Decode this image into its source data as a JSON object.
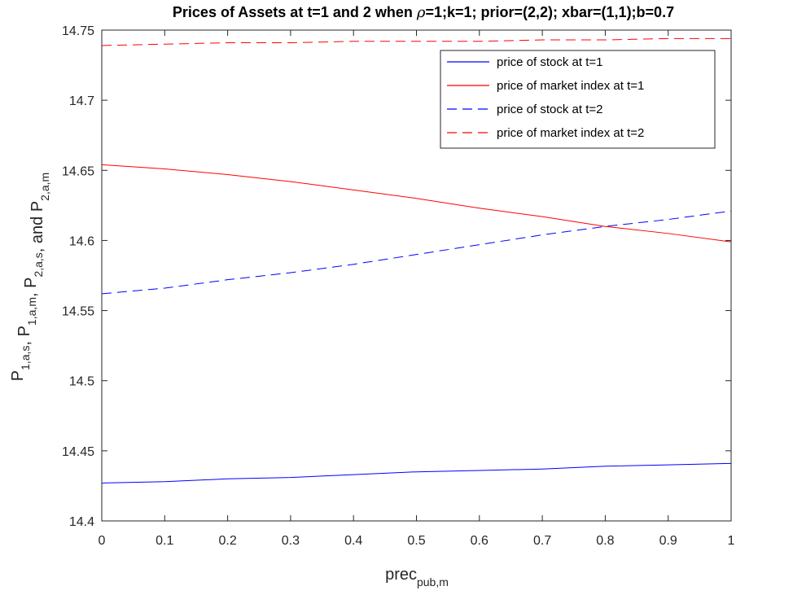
{
  "chart_data": {
    "type": "line",
    "title_parts": [
      "Prices of Assets at t=1 and 2 when ",
      "ρ",
      "=1;k=1; prior=(2,2); xbar=(1,1);b=0.7"
    ],
    "xlabel": {
      "main": "prec",
      "sub": "pub,m"
    },
    "ylabel_parts": [
      {
        "main": "P",
        "sub": "1,a,s"
      },
      {
        "sep": ", "
      },
      {
        "main": "P",
        "sub": "1,a,m"
      },
      {
        "sep": ", "
      },
      {
        "main": "P",
        "sub": "2,a,s"
      },
      {
        "sep": ", and "
      },
      {
        "main": "P",
        "sub": "2,a,m"
      }
    ],
    "xlim": [
      0,
      1
    ],
    "ylim": [
      14.4,
      14.75
    ],
    "x_ticks": [
      "0",
      "0.1",
      "0.2",
      "0.3",
      "0.4",
      "0.5",
      "0.6",
      "0.7",
      "0.8",
      "0.9",
      "1"
    ],
    "y_ticks": [
      "14.4",
      "14.45",
      "14.5",
      "14.55",
      "14.6",
      "14.65",
      "14.7",
      "14.75"
    ],
    "grid": false,
    "legend_position": "top-right",
    "x": [
      0,
      0.1,
      0.2,
      0.3,
      0.4,
      0.5,
      0.6,
      0.7,
      0.8,
      0.9,
      1.0
    ],
    "series": [
      {
        "name": "price of stock at t=1",
        "color": "#0000ff",
        "dash": "solid",
        "values": [
          14.427,
          14.428,
          14.43,
          14.431,
          14.433,
          14.435,
          14.436,
          14.437,
          14.439,
          14.44,
          14.441
        ]
      },
      {
        "name": "price of market index at t=1",
        "color": "#ff0000",
        "dash": "solid",
        "values": [
          14.654,
          14.651,
          14.647,
          14.642,
          14.636,
          14.63,
          14.623,
          14.617,
          14.61,
          14.605,
          14.599
        ]
      },
      {
        "name": "price of stock at t=2",
        "color": "#0000ff",
        "dash": "dashed",
        "values": [
          14.562,
          14.566,
          14.572,
          14.577,
          14.583,
          14.59,
          14.597,
          14.604,
          14.61,
          14.615,
          14.621
        ]
      },
      {
        "name": "price of market index at t=2",
        "color": "#ff0000",
        "dash": "dashed",
        "values": [
          14.739,
          14.74,
          14.741,
          14.741,
          14.742,
          14.742,
          14.742,
          14.743,
          14.743,
          14.744,
          14.744
        ]
      }
    ]
  }
}
